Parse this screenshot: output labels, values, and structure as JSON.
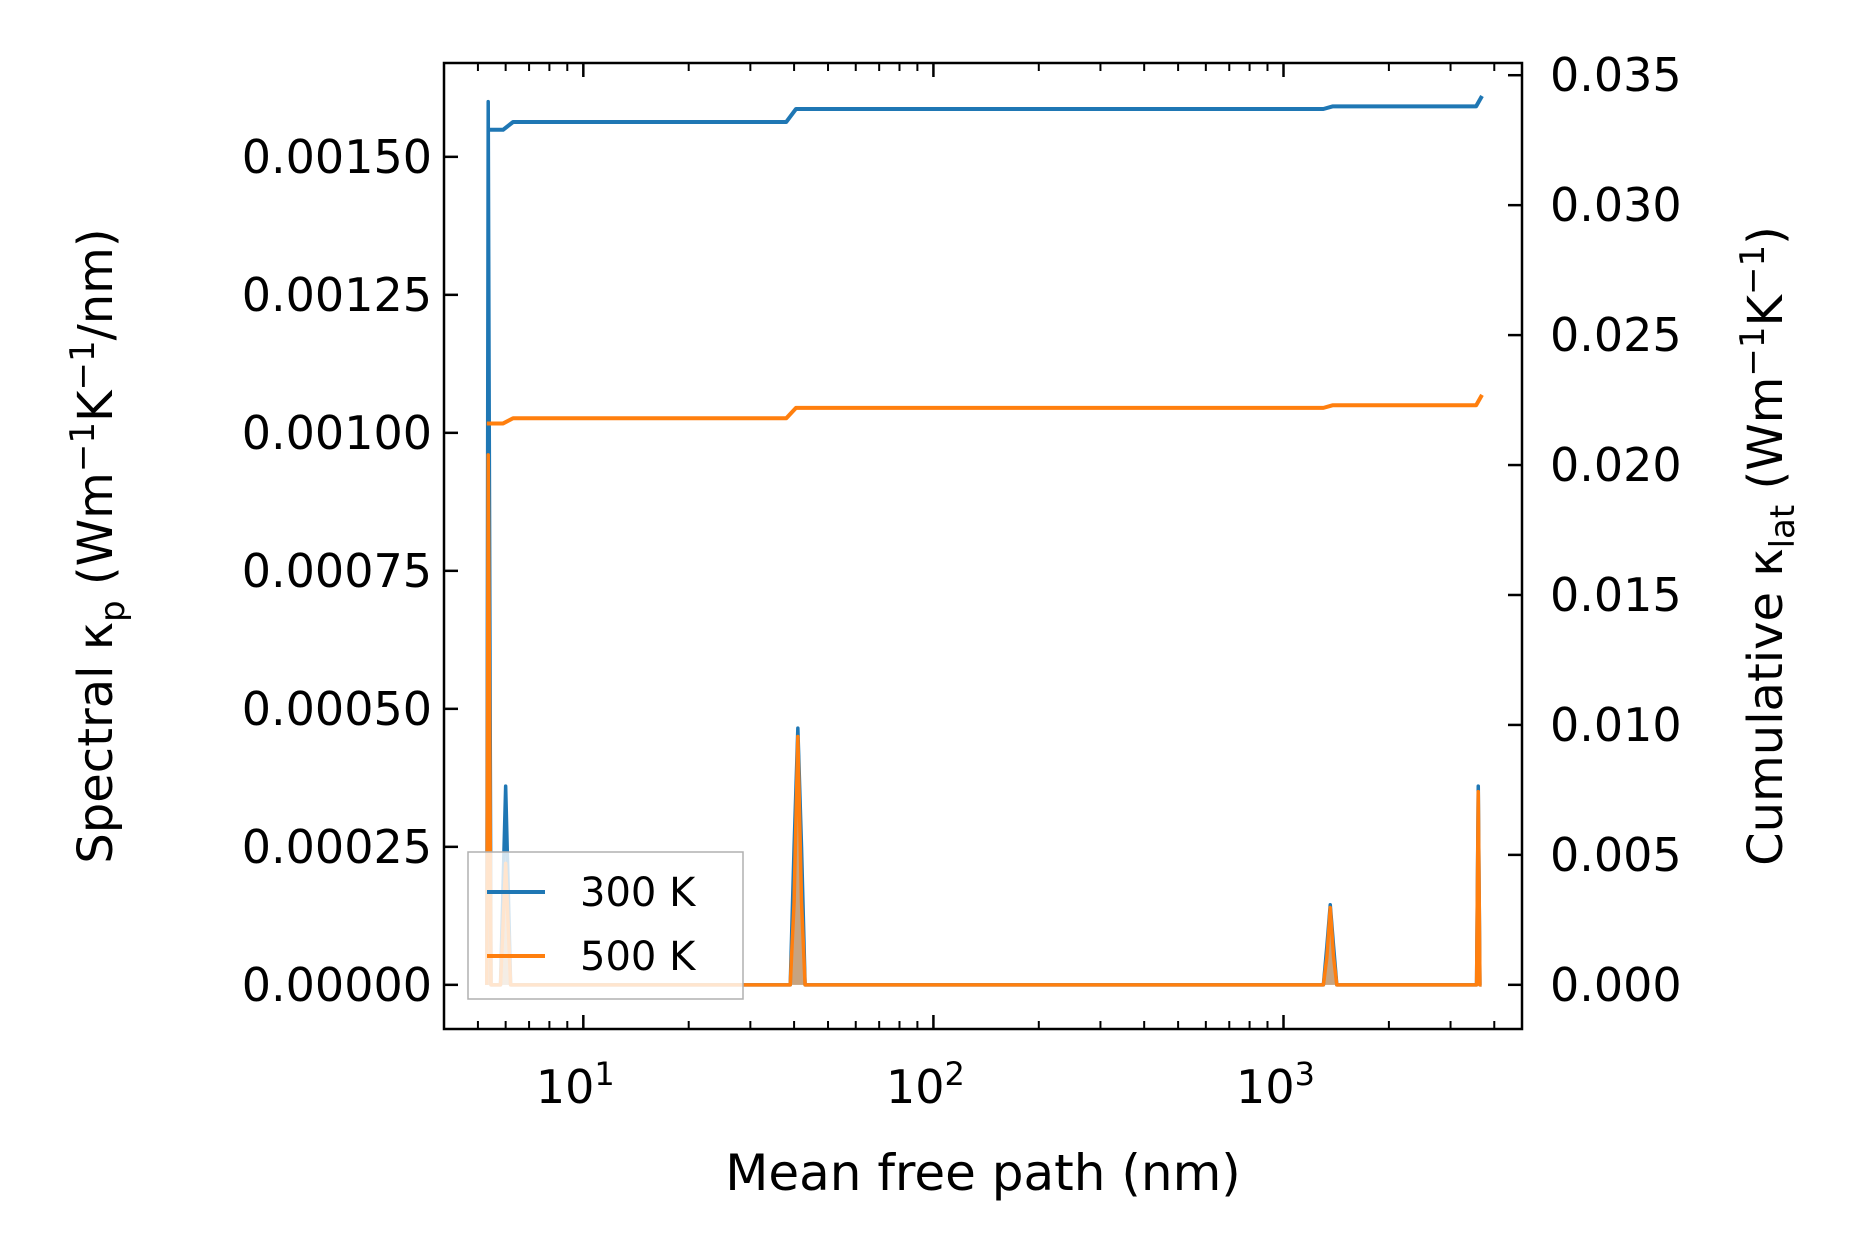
{
  "chart_data": {
    "type": "line",
    "xscale": "log",
    "xlim": [
      4.0,
      4800
    ],
    "xlabel": "Mean free path (nm)",
    "x_major_ticks": [
      {
        "value": 10,
        "base": "10",
        "exp": "1"
      },
      {
        "value": 100,
        "base": "10",
        "exp": "2"
      },
      {
        "value": 1000,
        "base": "10",
        "exp": "3"
      }
    ],
    "y_left": {
      "label_parts": [
        "Spectral κ",
        "p",
        " (Wm",
        "−1",
        "K",
        "−1",
        "/nm)"
      ],
      "lim": [
        -8e-05,
        0.00167
      ],
      "ticks": [
        0,
        0.00025,
        0.0005,
        0.00075,
        0.001,
        0.00125,
        0.0015
      ],
      "tick_labels": [
        "0.00000",
        "0.00025",
        "0.00050",
        "0.00075",
        "0.00100",
        "0.00125",
        "0.00150"
      ]
    },
    "y_right": {
      "label_parts": [
        "Cumulative κ",
        "lat",
        " (Wm",
        "−1",
        "K",
        "−1",
        ")"
      ],
      "lim": [
        -0.0017,
        0.03547
      ],
      "ticks": [
        0,
        0.005,
        0.01,
        0.015,
        0.02,
        0.025,
        0.03,
        0.035
      ],
      "tick_labels": [
        "0.000",
        "0.005",
        "0.010",
        "0.015",
        "0.020",
        "0.025",
        "0.030",
        "0.035"
      ]
    },
    "series": [
      {
        "name": "300 K",
        "color": "#1f77b4",
        "spectral": {
          "x": [
            5.3,
            5.35,
            5.45,
            5.55,
            5.8,
            6.0,
            6.2,
            6.5,
            39,
            40,
            41,
            42,
            43,
            1300,
            1330,
            1360,
            1390,
            1420,
            3500,
            3560,
            3600,
            3640,
            3680
          ],
          "y": [
            0,
            0.0016,
            0,
            0,
            0,
            0.00036,
            0,
            0,
            0,
            0.00025,
            0.000465,
            0.00025,
            0,
            0,
            7e-05,
            0.000145,
            7e-05,
            0,
            0,
            0,
            0.00036,
            0,
            0
          ]
        },
        "cumulative": {
          "x": [
            5.3,
            5.9,
            6.3,
            38,
            40.5,
            1300,
            1380,
            3550,
            3690
          ],
          "y": [
            0.0329,
            0.0329,
            0.0332,
            0.0332,
            0.0337,
            0.0337,
            0.0338,
            0.0338,
            0.0342
          ]
        }
      },
      {
        "name": "500 K",
        "color": "#ff7f0e",
        "spectral": {
          "x": [
            5.3,
            5.35,
            5.45,
            5.55,
            5.8,
            6.0,
            6.2,
            6.5,
            39,
            40,
            41,
            42,
            43,
            1300,
            1330,
            1360,
            1390,
            1420,
            3500,
            3560,
            3600,
            3640,
            3680
          ],
          "y": [
            0,
            0.00096,
            0,
            0,
            0,
            0.00022,
            0,
            0,
            0,
            0.00015,
            0.00045,
            0.00015,
            0,
            0,
            5e-05,
            0.00014,
            5e-05,
            0,
            0,
            0,
            0.00035,
            0,
            0
          ]
        },
        "cumulative": {
          "x": [
            5.3,
            5.9,
            6.3,
            38,
            40.5,
            1300,
            1380,
            3550,
            3690
          ],
          "y": [
            0.0216,
            0.0216,
            0.0218,
            0.0218,
            0.0222,
            0.0222,
            0.0223,
            0.0223,
            0.0227
          ]
        }
      }
    ],
    "legend": {
      "location": "lower-left",
      "entries": [
        "300 K",
        "500 K"
      ]
    }
  }
}
